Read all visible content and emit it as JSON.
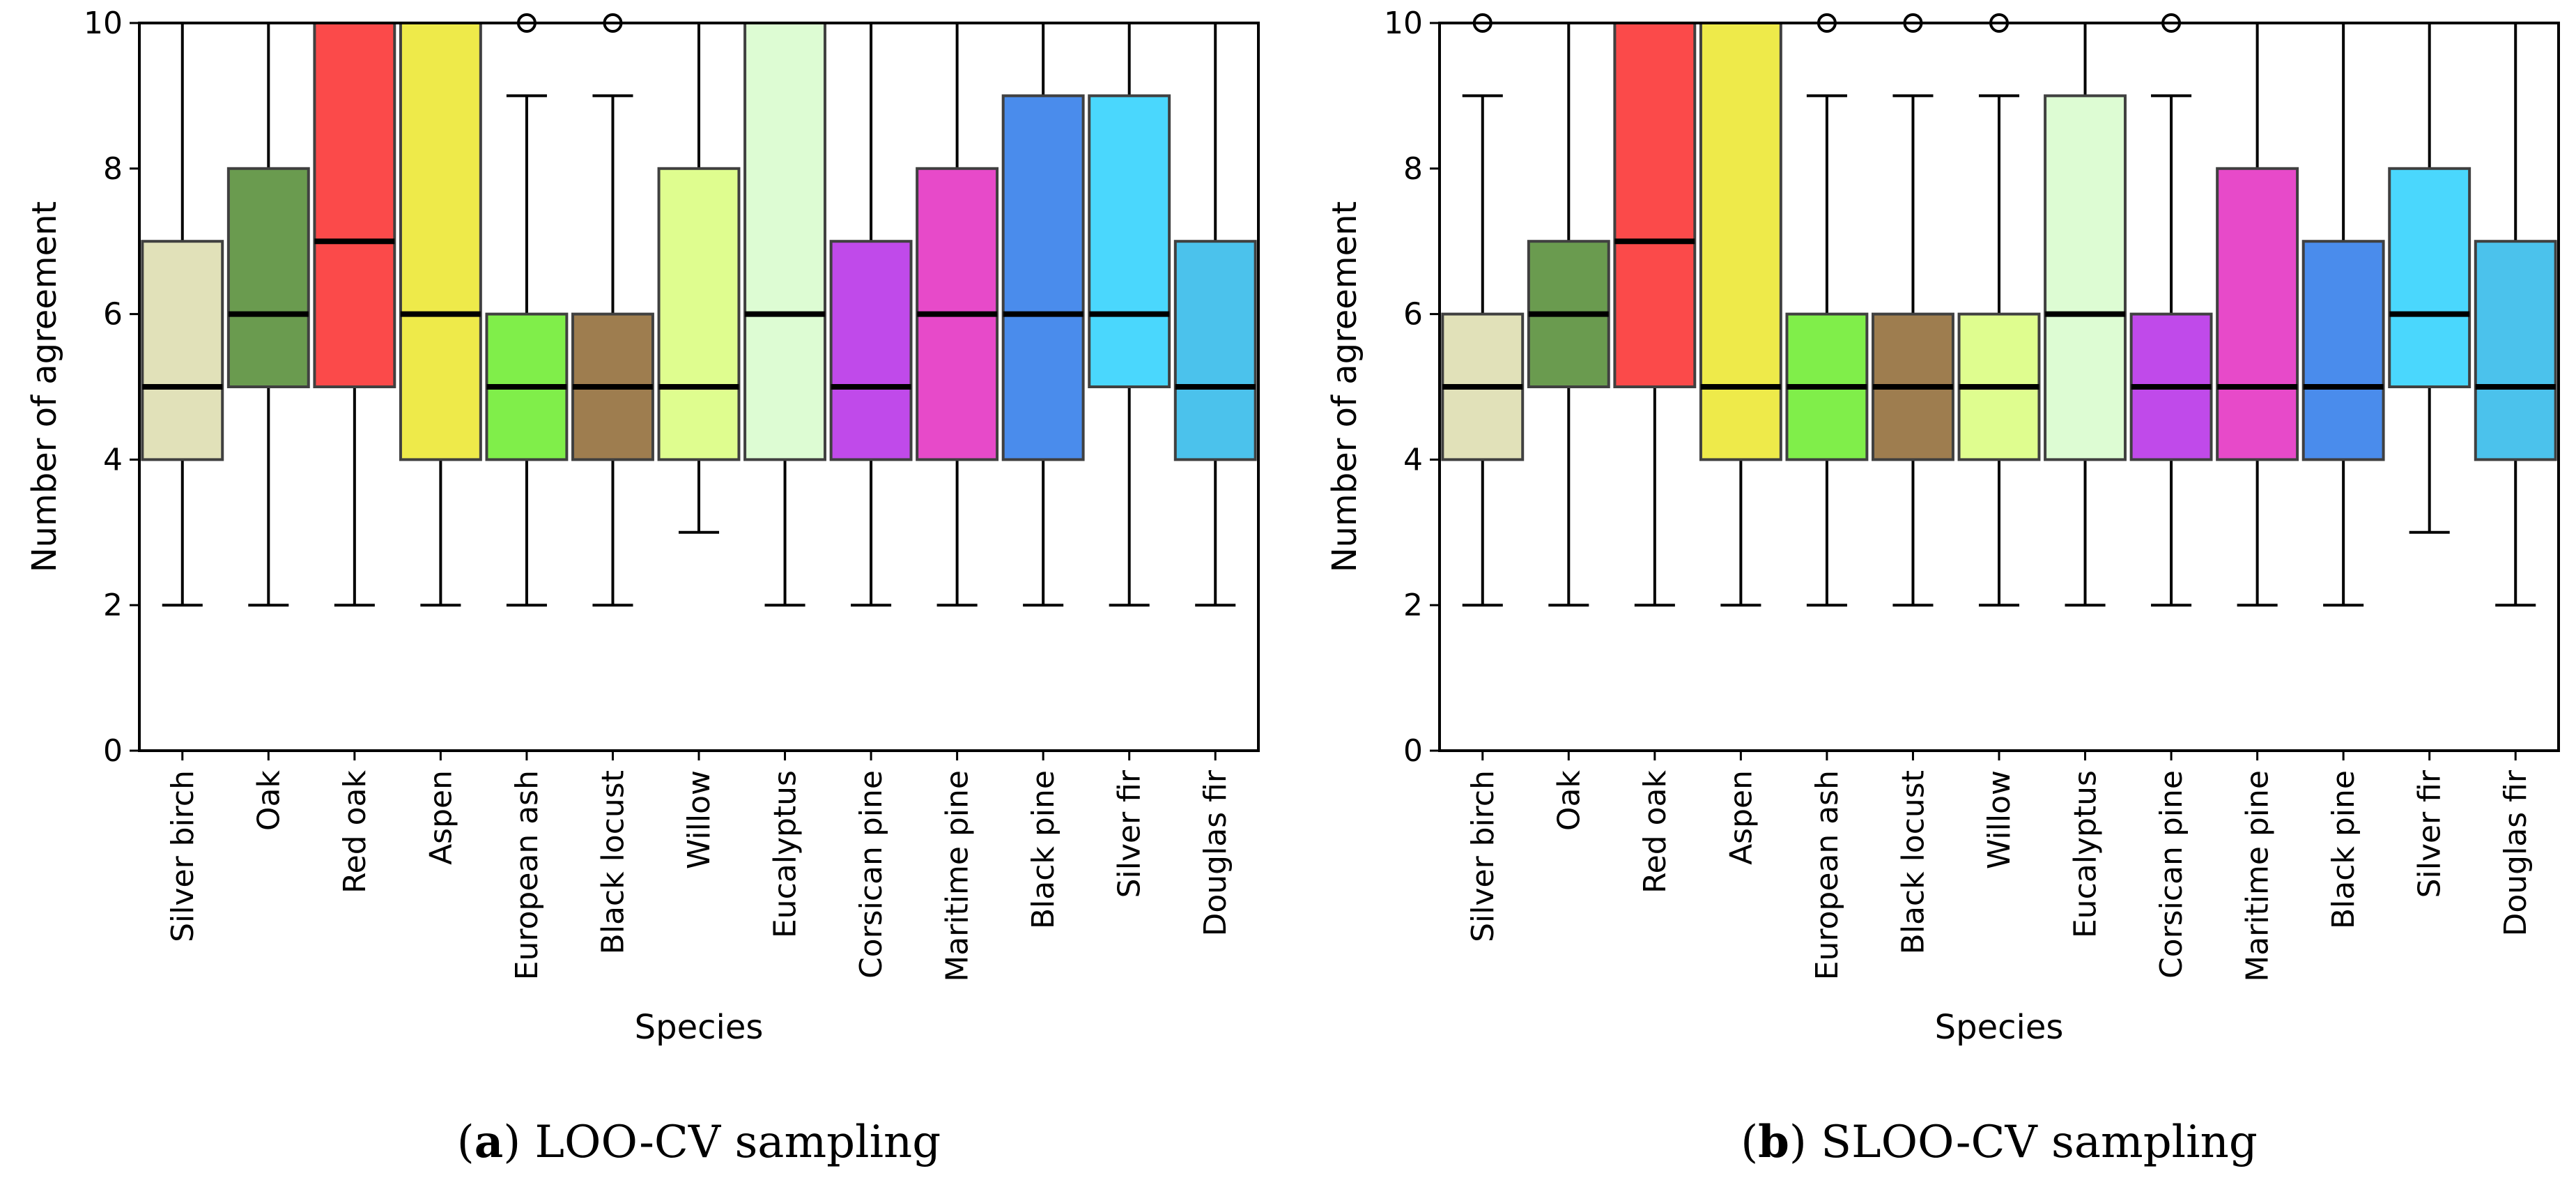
{
  "chart_data": [
    {
      "type": "boxplot",
      "caption": {
        "letter": "a",
        "text": "LOO-CV sampling"
      },
      "xlabel": "Species",
      "ylabel": "Number of agreement",
      "ylim": [
        0,
        10
      ],
      "yticks": [
        "0",
        "2",
        "4",
        "6",
        "8",
        "10"
      ],
      "categories": [
        "Silver birch",
        "Oak",
        "Red oak",
        "Aspen",
        "European ash",
        "Black locust",
        "Willow",
        "Eucalyptus",
        "Corsican pine",
        "Maritime pine",
        "Black pine",
        "Silver fir",
        "Douglas fir"
      ],
      "colors": [
        "#e1e1b9",
        "#6a9b4f",
        "#fb4a4a",
        "#eeea4a",
        "#80ee4a",
        "#9e7d4f",
        "#dffd8f",
        "#ddfcd3",
        "#c04aea",
        "#e74ac9",
        "#4a8cec",
        "#4ad7fd",
        "#4bc2ec"
      ],
      "boxes": [
        {
          "whislo": 2,
          "q1": 4,
          "med": 5,
          "q3": 7,
          "whishi": 10,
          "fliers": []
        },
        {
          "whislo": 2,
          "q1": 5,
          "med": 6,
          "q3": 8,
          "whishi": 10,
          "fliers": []
        },
        {
          "whislo": 2,
          "q1": 5,
          "med": 7,
          "q3": 10,
          "whishi": 10,
          "fliers": []
        },
        {
          "whislo": 2,
          "q1": 4,
          "med": 6,
          "q3": 10,
          "whishi": 10,
          "fliers": []
        },
        {
          "whislo": 2,
          "q1": 4,
          "med": 5,
          "q3": 6,
          "whishi": 9,
          "fliers": [
            10
          ]
        },
        {
          "whislo": 2,
          "q1": 4,
          "med": 5,
          "q3": 6,
          "whishi": 9,
          "fliers": [
            10
          ]
        },
        {
          "whislo": 3,
          "q1": 4,
          "med": 5,
          "q3": 8,
          "whishi": 10,
          "fliers": []
        },
        {
          "whislo": 2,
          "q1": 4,
          "med": 6,
          "q3": 10,
          "whishi": 10,
          "fliers": []
        },
        {
          "whislo": 2,
          "q1": 4,
          "med": 5,
          "q3": 7,
          "whishi": 10,
          "fliers": []
        },
        {
          "whislo": 2,
          "q1": 4,
          "med": 6,
          "q3": 8,
          "whishi": 10,
          "fliers": []
        },
        {
          "whislo": 2,
          "q1": 4,
          "med": 6,
          "q3": 9,
          "whishi": 10,
          "fliers": []
        },
        {
          "whislo": 2,
          "q1": 5,
          "med": 6,
          "q3": 9,
          "whishi": 10,
          "fliers": []
        },
        {
          "whislo": 2,
          "q1": 4,
          "med": 5,
          "q3": 7,
          "whishi": 10,
          "fliers": []
        }
      ]
    },
    {
      "type": "boxplot",
      "caption": {
        "letter": "b",
        "text": "SLOO-CV sampling"
      },
      "xlabel": "Species",
      "ylabel": "Number of agreement",
      "ylim": [
        0,
        10
      ],
      "yticks": [
        "0",
        "2",
        "4",
        "6",
        "8",
        "10"
      ],
      "categories": [
        "Silver birch",
        "Oak",
        "Red oak",
        "Aspen",
        "European ash",
        "Black locust",
        "Willow",
        "Eucalyptus",
        "Corsican pine",
        "Maritime pine",
        "Black pine",
        "Silver fir",
        "Douglas fir"
      ],
      "colors": [
        "#e1e1b9",
        "#6a9b4f",
        "#fb4a4a",
        "#eeea4a",
        "#80ee4a",
        "#9e7d4f",
        "#dffd8f",
        "#ddfcd3",
        "#c04aea",
        "#e74ac9",
        "#4a8cec",
        "#4ad7fd",
        "#4bc2ec"
      ],
      "boxes": [
        {
          "whislo": 2,
          "q1": 4,
          "med": 5,
          "q3": 6,
          "whishi": 9,
          "fliers": [
            10
          ]
        },
        {
          "whislo": 2,
          "q1": 5,
          "med": 6,
          "q3": 7,
          "whishi": 10,
          "fliers": []
        },
        {
          "whislo": 2,
          "q1": 5,
          "med": 7,
          "q3": 10,
          "whishi": 10,
          "fliers": []
        },
        {
          "whislo": 2,
          "q1": 4,
          "med": 5,
          "q3": 10,
          "whishi": 10,
          "fliers": []
        },
        {
          "whislo": 2,
          "q1": 4,
          "med": 5,
          "q3": 6,
          "whishi": 9,
          "fliers": [
            10
          ]
        },
        {
          "whislo": 2,
          "q1": 4,
          "med": 5,
          "q3": 6,
          "whishi": 9,
          "fliers": [
            10
          ]
        },
        {
          "whislo": 2,
          "q1": 4,
          "med": 5,
          "q3": 6,
          "whishi": 9,
          "fliers": [
            10
          ]
        },
        {
          "whislo": 2,
          "q1": 4,
          "med": 6,
          "q3": 9,
          "whishi": 10,
          "fliers": []
        },
        {
          "whislo": 2,
          "q1": 4,
          "med": 5,
          "q3": 6,
          "whishi": 9,
          "fliers": [
            10
          ]
        },
        {
          "whislo": 2,
          "q1": 4,
          "med": 5,
          "q3": 8,
          "whishi": 10,
          "fliers": []
        },
        {
          "whislo": 2,
          "q1": 4,
          "med": 5,
          "q3": 7,
          "whishi": 10,
          "fliers": []
        },
        {
          "whislo": 3,
          "q1": 5,
          "med": 6,
          "q3": 8,
          "whishi": 10,
          "fliers": []
        },
        {
          "whislo": 2,
          "q1": 4,
          "med": 5,
          "q3": 7,
          "whishi": 10,
          "fliers": []
        }
      ]
    }
  ]
}
